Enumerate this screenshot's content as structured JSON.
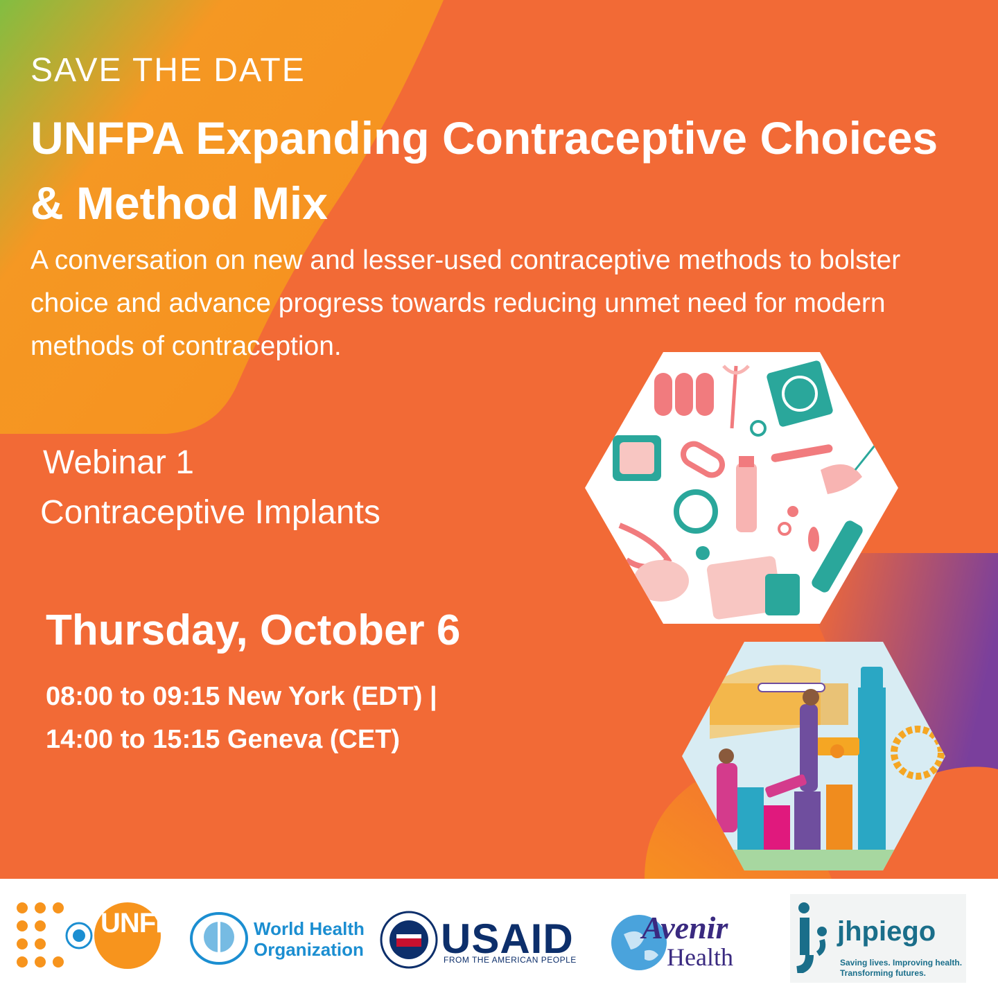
{
  "header": {
    "eyebrow": "SAVE THE DATE",
    "title": "UNFPA Expanding Contraceptive Choices & Method Mix",
    "description": "A conversation on new and lesser-used contraceptive methods to bolster choice and advance progress towards reducing unmet need for modern methods of contraception."
  },
  "event": {
    "webinar": "Webinar 1",
    "topic": "Contraceptive Implants",
    "date": "Thursday, October 6",
    "time_ny": "08:00 to 09:15 New York (EDT) |",
    "time_geneva": "14:00 to 15:15 Geneva (CET)"
  },
  "logos": {
    "unfpa": "UNFPA",
    "who_line1": "World Health",
    "who_line2": "Organization",
    "usaid": "USAID",
    "usaid_tagline": "FROM THE AMERICAN PEOPLE",
    "avenir_line1": "Avenir",
    "avenir_line2": "Health",
    "jhpiego": "jhpiego",
    "jhpiego_tagline1": "Saving lives. Improving health.",
    "jhpiego_tagline2": "Transforming futures."
  },
  "colors": {
    "background": "#f26a36",
    "accent_green": "#8bc34a",
    "accent_purple": "#7b3f9e",
    "teal": "#2aa79b",
    "pink": "#ef6f7a"
  },
  "icons": [
    "contraceptive-methods-illustration",
    "progress-chart-illustration",
    "un-emblem-icon",
    "who-emblem-icon",
    "usaid-seal-icon",
    "globe-icon"
  ]
}
